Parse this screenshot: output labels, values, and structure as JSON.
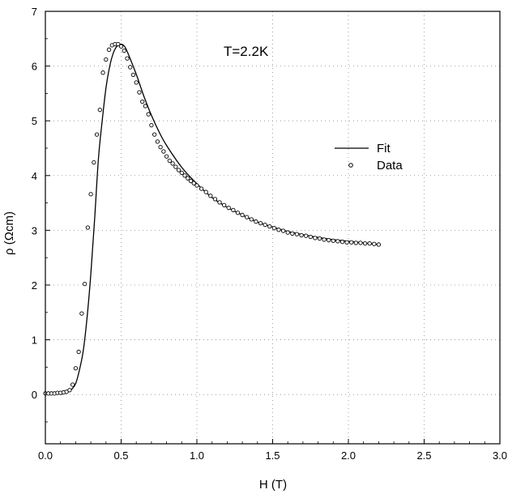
{
  "chart_data": {
    "type": "scatter",
    "xlabel": "H (T)",
    "ylabel": "ρ (Ωcm)",
    "xlim": [
      0.0,
      3.0
    ],
    "ylim": [
      -0.9,
      7.0
    ],
    "x_ticks": [
      0.0,
      0.5,
      1.0,
      1.5,
      2.0,
      2.5,
      3.0
    ],
    "x_tick_labels": [
      "0.0",
      "0.5",
      "1.0",
      "1.5",
      "2.0",
      "2.5",
      "3.0"
    ],
    "y_ticks": [
      0,
      1,
      2,
      3,
      4,
      5,
      6,
      7
    ],
    "y_tick_labels": [
      "0",
      "1",
      "2",
      "3",
      "4",
      "5",
      "6",
      "7"
    ],
    "grid": true,
    "legend_position": "right-middle",
    "annotation": "T=2.2K",
    "series": [
      {
        "name": "Fit",
        "style": "line",
        "color": "#000000",
        "x": [
          0.0,
          0.1,
          0.15,
          0.175,
          0.2,
          0.225,
          0.25,
          0.275,
          0.3,
          0.325,
          0.35,
          0.375,
          0.4,
          0.425,
          0.45,
          0.475,
          0.5,
          0.525,
          0.55,
          0.6,
          0.65,
          0.7,
          0.75,
          0.8,
          0.9,
          1.0,
          1.1,
          1.2,
          1.3,
          1.4,
          1.5,
          1.6,
          1.7,
          1.8,
          1.9,
          2.0,
          2.1,
          2.2
        ],
        "y": [
          0.02,
          0.03,
          0.05,
          0.1,
          0.2,
          0.45,
          0.8,
          1.4,
          2.2,
          3.2,
          4.3,
          5.0,
          5.6,
          6.0,
          6.25,
          6.37,
          6.4,
          6.35,
          6.2,
          5.85,
          5.45,
          5.1,
          4.8,
          4.55,
          4.15,
          3.85,
          3.6,
          3.42,
          3.28,
          3.15,
          3.06,
          2.98,
          2.92,
          2.87,
          2.83,
          2.8,
          2.77,
          2.74
        ]
      },
      {
        "name": "Data",
        "style": "markers",
        "marker": "open-circle",
        "color": "#000000",
        "x": [
          0.0,
          0.02,
          0.04,
          0.06,
          0.08,
          0.1,
          0.12,
          0.14,
          0.16,
          0.18,
          0.2,
          0.22,
          0.24,
          0.26,
          0.28,
          0.3,
          0.32,
          0.34,
          0.36,
          0.38,
          0.4,
          0.42,
          0.44,
          0.46,
          0.48,
          0.5,
          0.52,
          0.54,
          0.56,
          0.58,
          0.6,
          0.62,
          0.64,
          0.66,
          0.68,
          0.7,
          0.72,
          0.74,
          0.76,
          0.78,
          0.8,
          0.82,
          0.84,
          0.86,
          0.88,
          0.9,
          0.92,
          0.94,
          0.96,
          0.98,
          1.0,
          1.03,
          1.06,
          1.09,
          1.12,
          1.15,
          1.18,
          1.21,
          1.24,
          1.27,
          1.3,
          1.33,
          1.36,
          1.39,
          1.42,
          1.45,
          1.48,
          1.51,
          1.54,
          1.57,
          1.6,
          1.63,
          1.66,
          1.69,
          1.72,
          1.75,
          1.78,
          1.81,
          1.84,
          1.87,
          1.9,
          1.93,
          1.96,
          1.99,
          2.02,
          2.05,
          2.08,
          2.11,
          2.14,
          2.17,
          2.2
        ],
        "y": [
          0.02,
          0.02,
          0.02,
          0.02,
          0.03,
          0.03,
          0.04,
          0.05,
          0.08,
          0.18,
          0.48,
          0.78,
          1.48,
          2.02,
          3.05,
          3.66,
          4.24,
          4.75,
          5.2,
          5.88,
          6.12,
          6.3,
          6.38,
          6.4,
          6.4,
          6.36,
          6.28,
          6.14,
          5.98,
          5.84,
          5.7,
          5.52,
          5.35,
          5.27,
          5.12,
          4.92,
          4.75,
          4.62,
          4.52,
          4.44,
          4.35,
          4.27,
          4.22,
          4.16,
          4.1,
          4.05,
          4.0,
          3.95,
          3.9,
          3.86,
          3.82,
          3.76,
          3.7,
          3.63,
          3.57,
          3.51,
          3.46,
          3.41,
          3.37,
          3.32,
          3.28,
          3.24,
          3.2,
          3.16,
          3.13,
          3.1,
          3.07,
          3.04,
          3.01,
          2.99,
          2.96,
          2.94,
          2.93,
          2.91,
          2.9,
          2.88,
          2.86,
          2.85,
          2.83,
          2.82,
          2.81,
          2.8,
          2.79,
          2.78,
          2.78,
          2.77,
          2.77,
          2.76,
          2.76,
          2.75,
          2.74
        ]
      }
    ]
  }
}
